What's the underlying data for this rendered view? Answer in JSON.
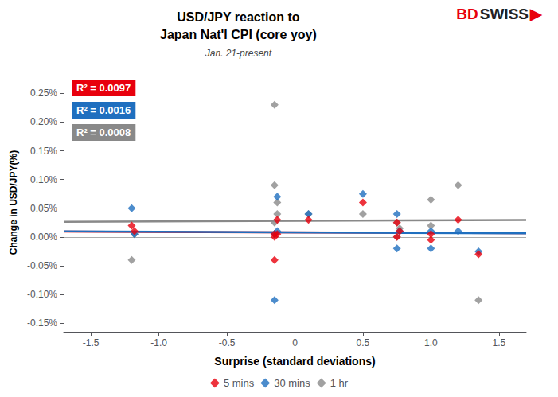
{
  "chart_data": {
    "type": "scatter",
    "title": [
      "USD/JPY reaction to",
      "Japan Nat'l CPI (core yoy)"
    ],
    "subtitle": "Jan. 21-present",
    "xlabel": "Surprise (standard deviations)",
    "ylabel": "Change in USD/JPY(%)",
    "xlim": [
      -1.7,
      1.7
    ],
    "ylim": [
      -0.165,
      0.285
    ],
    "xticks": [
      -1.5,
      {
        "value": -1.0,
        "label": "-1.0"
      },
      -0.5,
      0,
      0.5,
      {
        "value": 1.0,
        "label": "1.0"
      },
      1.5
    ],
    "yticks": [
      {
        "value": -0.15,
        "label": "-0.15%"
      },
      {
        "value": -0.1,
        "label": "-0.10%"
      },
      {
        "value": -0.05,
        "label": "-0.05%"
      },
      {
        "value": 0.0,
        "label": "0.00%"
      },
      {
        "value": 0.05,
        "label": "0.05%"
      },
      {
        "value": 0.1,
        "label": "0.10%"
      },
      {
        "value": 0.15,
        "label": "0.15%"
      },
      {
        "value": 0.2,
        "label": "0.20%"
      },
      {
        "value": 0.25,
        "label": "0.25%"
      }
    ],
    "grid": false,
    "legend": "bottom",
    "series": [
      {
        "name": "5 mins",
        "color": "#e8000d",
        "marker": "diamond",
        "x": [
          -1.2,
          -1.18,
          -0.15,
          -0.15,
          -0.13,
          -0.13,
          -0.15,
          0.1,
          0.5,
          0.75,
          0.77,
          0.75,
          1.0,
          1.0,
          1.2,
          1.35
        ],
        "values": [
          0.02,
          0.01,
          -0.04,
          0.0,
          0.005,
          0.03,
          0.005,
          0.03,
          0.06,
          0.025,
          0.01,
          0.0,
          -0.005,
          0.005,
          0.03,
          -0.03
        ],
        "trendline": {
          "x": [
            -1.7,
            1.7
          ],
          "values": [
            0.00936,
            0.00664
          ]
        }
      },
      {
        "name": "30 mins",
        "color": "#1f6fbf",
        "marker": "diamond",
        "x": [
          -1.2,
          -1.18,
          -0.15,
          -0.15,
          -0.13,
          -0.13,
          -0.15,
          0.1,
          0.5,
          0.75,
          0.77,
          0.75,
          1.0,
          1.0,
          1.2,
          1.35
        ],
        "values": [
          0.05,
          0.005,
          -0.11,
          0.005,
          0.01,
          0.07,
          0.005,
          0.04,
          0.075,
          0.04,
          0.01,
          -0.02,
          -0.02,
          0.01,
          0.01,
          -0.025
        ],
        "trendline": {
          "x": [
            -1.7,
            1.7
          ],
          "values": [
            0.0097,
            0.0063
          ]
        }
      },
      {
        "name": "1 hr",
        "color": "#898989",
        "marker": "diamond",
        "x": [
          -1.2,
          -1.18,
          -0.15,
          -0.15,
          -0.13,
          -0.13,
          -0.15,
          0.1,
          0.5,
          0.75,
          0.77,
          0.75,
          1.0,
          1.0,
          1.2,
          1.35
        ],
        "values": [
          -0.04,
          0.005,
          0.23,
          0.09,
          0.06,
          0.04,
          0.025,
          0.04,
          0.04,
          0.025,
          0.015,
          0.0,
          0.02,
          0.065,
          0.09,
          -0.11
        ],
        "trendline": {
          "x": [
            -1.7,
            1.7
          ],
          "values": [
            0.0263,
            0.0297
          ]
        }
      }
    ],
    "annotations": [
      {
        "text": "R² = 0.0097",
        "color": "#e8000d"
      },
      {
        "text": "R² = 0.0016",
        "color": "#1f6fbf"
      },
      {
        "text": "R² = 0.0008",
        "color": "#898989"
      }
    ],
    "logo": [
      {
        "text": "BD",
        "color": "#e8000d"
      },
      {
        "text": "SWISS",
        "color": "#222222"
      },
      {
        "text": "▶",
        "color": "#e8000d"
      }
    ]
  }
}
